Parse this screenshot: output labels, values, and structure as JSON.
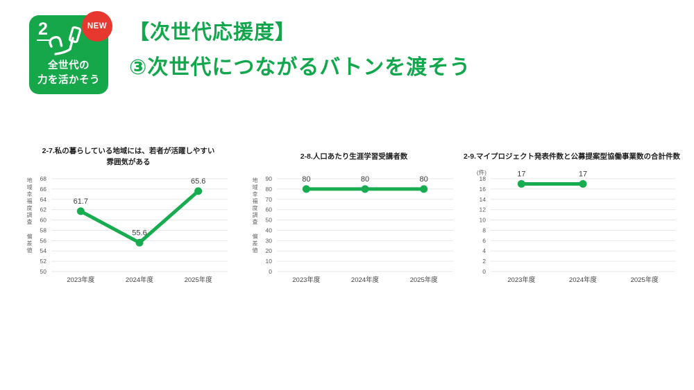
{
  "header": {
    "badge": {
      "number": "2",
      "new_label": "NEW",
      "caption_line1": "全世代の",
      "caption_line2": "力を活かそう"
    },
    "title_line1": "【次世代応援度】",
    "title_line2": "③次世代につながるバトンを渡そう"
  },
  "colors": {
    "green": "#16A74B",
    "title_green": "#12A74C",
    "line_green": "#17AC4F",
    "red": "#E6382E",
    "grid": "#E7E7E7",
    "tick_text": "#595959",
    "value_text": "#3D3D3D",
    "title_text": "#1F1F1F",
    "white": "#FFFFFF"
  },
  "chart_data": [
    {
      "type": "line",
      "title": "2-7.私の暮らしている地域には、若者が活躍しやすい雰囲気がある",
      "title_lines": [
        "2-7.私の暮らしている地域には、若者が活躍しやすい",
        "雰囲気がある"
      ],
      "categories": [
        "2023年度",
        "2024年度",
        "2025年度"
      ],
      "values": [
        61.7,
        55.6,
        65.6
      ],
      "ylim": [
        50,
        68
      ],
      "ytick_step": 2,
      "ylabel": "地域幸福度調査 偏差値",
      "unit": "",
      "grid": true,
      "legend": "none"
    },
    {
      "type": "line",
      "title": "2-8.人口あたり生涯学習受講者数",
      "title_lines": [
        "2-8.人口あたり生涯学習受講者数"
      ],
      "categories": [
        "2023年度",
        "2024年度",
        "2025年度"
      ],
      "values": [
        80,
        80,
        80
      ],
      "ylim": [
        0,
        90
      ],
      "ytick_step": 10,
      "ylabel": "地域幸福度調査 偏差値",
      "unit": "",
      "grid": true,
      "legend": "none"
    },
    {
      "type": "line",
      "title": "2-9.マイプロジェクト発表件数と公募提案型協働事業数の合計件数",
      "title_lines": [
        "2-9.マイプロジェクト発表件数と公募提案型協働事業数の合計件数"
      ],
      "categories": [
        "2023年度",
        "2024年度",
        "2025年度"
      ],
      "values": [
        17,
        17,
        null
      ],
      "ylim": [
        0,
        18
      ],
      "ytick_step": 2,
      "ylabel": "",
      "unit": "(件)",
      "grid": true,
      "legend": "none"
    }
  ]
}
